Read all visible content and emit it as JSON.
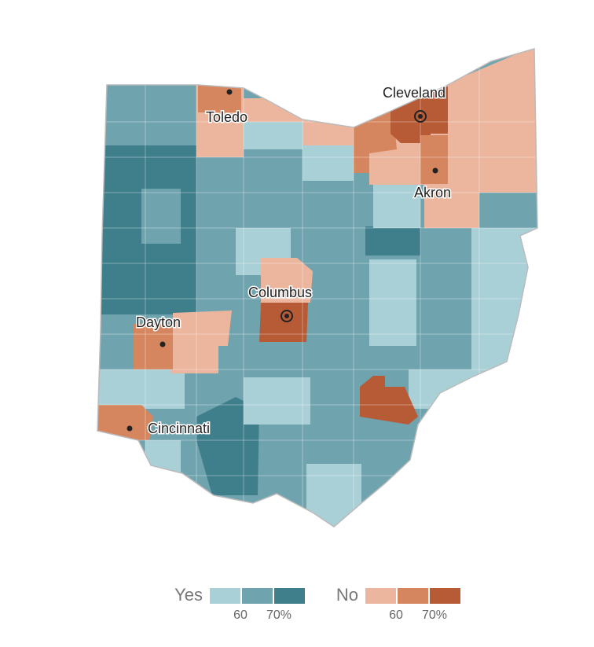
{
  "cities": [
    {
      "label": "Cleveland"
    },
    {
      "label": "Toledo"
    },
    {
      "label": "Akron"
    },
    {
      "label": "Columbus"
    },
    {
      "label": "Dayton"
    },
    {
      "label": "Cincinnati"
    }
  ],
  "legend": {
    "yes": {
      "label": "Yes",
      "colors": [
        "#a9cfd7",
        "#6fa3ae",
        "#3f7f8b"
      ],
      "ticks": [
        "60",
        "70%"
      ]
    },
    "no": {
      "label": "No",
      "colors": [
        "#ebb69d",
        "#d6865f",
        "#b75a36"
      ],
      "ticks": [
        "60",
        "70%"
      ]
    }
  }
}
